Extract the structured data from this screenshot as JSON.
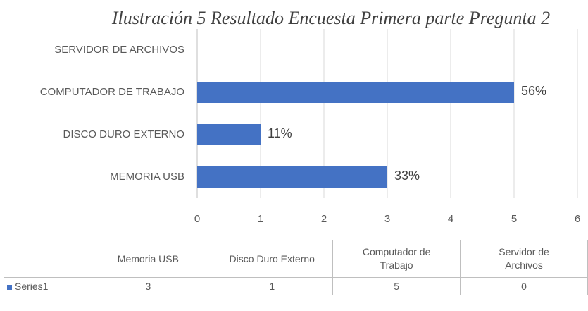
{
  "chart_data": {
    "type": "bar",
    "orientation": "horizontal",
    "title": "Ilustración 5 Resultado Encuesta Primera parte Pregunta 2",
    "categories": [
      "MEMORIA USB",
      "DISCO DURO EXTERNO",
      "COMPUTADOR DE TRABAJO",
      "SERVIDOR DE ARCHIVOS"
    ],
    "series": [
      {
        "name": "Series1",
        "color": "#4472c4",
        "values": [
          3,
          1,
          5,
          0
        ]
      }
    ],
    "data_labels": [
      "33%",
      "11%",
      "56%",
      null
    ],
    "xlim": [
      0,
      6
    ],
    "xticks": [
      0,
      1,
      2,
      3,
      4,
      5,
      6
    ],
    "grid": true,
    "data_table": {
      "categories": [
        "Memoria USB",
        "Disco Duro Externo",
        "Computador de Trabajo",
        "Servidor de Archivos"
      ]
    }
  }
}
